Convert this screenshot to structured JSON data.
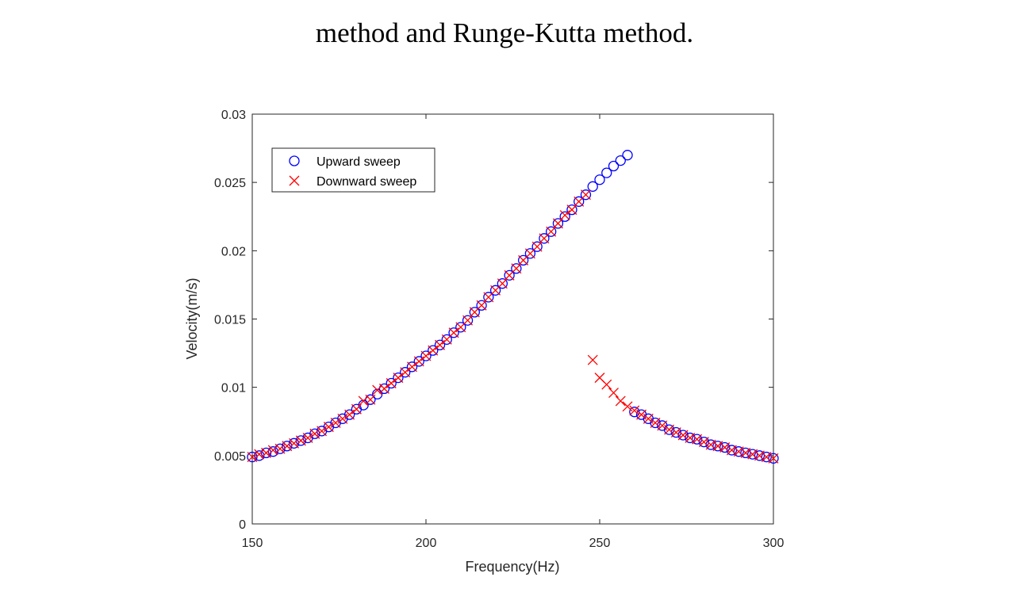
{
  "caption": "method and Runge-Kutta method.",
  "chart_data": {
    "type": "scatter",
    "title": "",
    "xlabel": "Frequency(Hz)",
    "ylabel": "Velocity(m/s)",
    "xlim": [
      150,
      300
    ],
    "ylim": [
      0,
      0.03
    ],
    "xticks": [
      "150",
      "200",
      "250",
      "300"
    ],
    "xtick_values": [
      150,
      200,
      250,
      300
    ],
    "yticks": [
      "0",
      "0.005",
      "0.01",
      "0.015",
      "0.02",
      "0.025",
      "0.03"
    ],
    "ytick_values": [
      0,
      0.005,
      0.01,
      0.015,
      0.02,
      0.025,
      0.03
    ],
    "grid": false,
    "legend_placement": "top-left",
    "x": [
      150,
      152,
      154,
      156,
      158,
      160,
      162,
      164,
      166,
      168,
      170,
      172,
      174,
      176,
      178,
      180,
      182,
      184,
      186,
      188,
      190,
      192,
      194,
      196,
      198,
      200,
      202,
      204,
      206,
      208,
      210,
      212,
      214,
      216,
      218,
      220,
      222,
      224,
      226,
      228,
      230,
      232,
      234,
      236,
      238,
      240,
      242,
      244,
      246,
      248,
      250,
      252,
      254,
      256,
      258,
      260,
      262,
      264,
      266,
      268,
      270,
      272,
      274,
      276,
      278,
      280,
      282,
      284,
      286,
      288,
      290,
      292,
      294,
      296,
      298,
      300
    ],
    "series": [
      {
        "name": "Upward sweep",
        "marker": "circle",
        "color": "#0000ff",
        "values": [
          0.0049,
          0.005,
          0.0052,
          0.0053,
          0.0055,
          0.0057,
          0.0059,
          0.0061,
          0.0063,
          0.0066,
          0.0068,
          0.0071,
          0.0074,
          0.0077,
          0.008,
          0.0084,
          0.0087,
          0.0091,
          0.0095,
          0.0099,
          0.0103,
          0.0107,
          0.0111,
          0.0115,
          0.0119,
          0.0123,
          0.0127,
          0.0131,
          0.0135,
          0.014,
          0.0144,
          0.0149,
          0.0155,
          0.016,
          0.0166,
          0.0171,
          0.0176,
          0.0182,
          0.0187,
          0.0193,
          0.0198,
          0.0203,
          0.0209,
          0.0214,
          0.022,
          0.0225,
          0.023,
          0.0236,
          0.0241,
          0.0247,
          0.0252,
          0.0257,
          0.0262,
          0.0266,
          0.027,
          0.0082,
          0.008,
          0.0077,
          0.0074,
          0.0072,
          0.0069,
          0.0067,
          0.0065,
          0.0063,
          0.0062,
          0.006,
          0.0058,
          0.0057,
          0.0056,
          0.0054,
          0.0053,
          0.0052,
          0.0051,
          0.005,
          0.0049,
          0.0048
        ]
      },
      {
        "name": "Downward sweep",
        "marker": "x",
        "color": "#ff0000",
        "values": [
          0.0049,
          0.0051,
          0.0052,
          0.0054,
          0.0055,
          0.0057,
          0.0059,
          0.0061,
          0.0063,
          0.0066,
          0.0068,
          0.0071,
          0.0074,
          0.0077,
          0.008,
          0.0084,
          0.009,
          0.0091,
          0.0098,
          0.0099,
          0.0103,
          0.0107,
          0.0111,
          0.0115,
          0.0119,
          0.0123,
          0.0127,
          0.0131,
          0.0135,
          0.014,
          0.0144,
          0.0149,
          0.0155,
          0.016,
          0.0166,
          0.0171,
          0.0176,
          0.0182,
          0.0187,
          0.0193,
          0.0198,
          0.0203,
          0.0209,
          0.0214,
          0.022,
          0.0226,
          0.023,
          0.0236,
          0.0241,
          0.012,
          0.0107,
          0.0102,
          0.0096,
          0.009,
          0.0086,
          0.0083,
          0.008,
          0.0077,
          0.0074,
          0.0072,
          0.0069,
          0.0067,
          0.0065,
          0.0063,
          0.0062,
          0.006,
          0.0058,
          0.0057,
          0.0056,
          0.0054,
          0.0053,
          0.0052,
          0.0051,
          0.005,
          0.0049,
          0.0048
        ]
      }
    ]
  }
}
